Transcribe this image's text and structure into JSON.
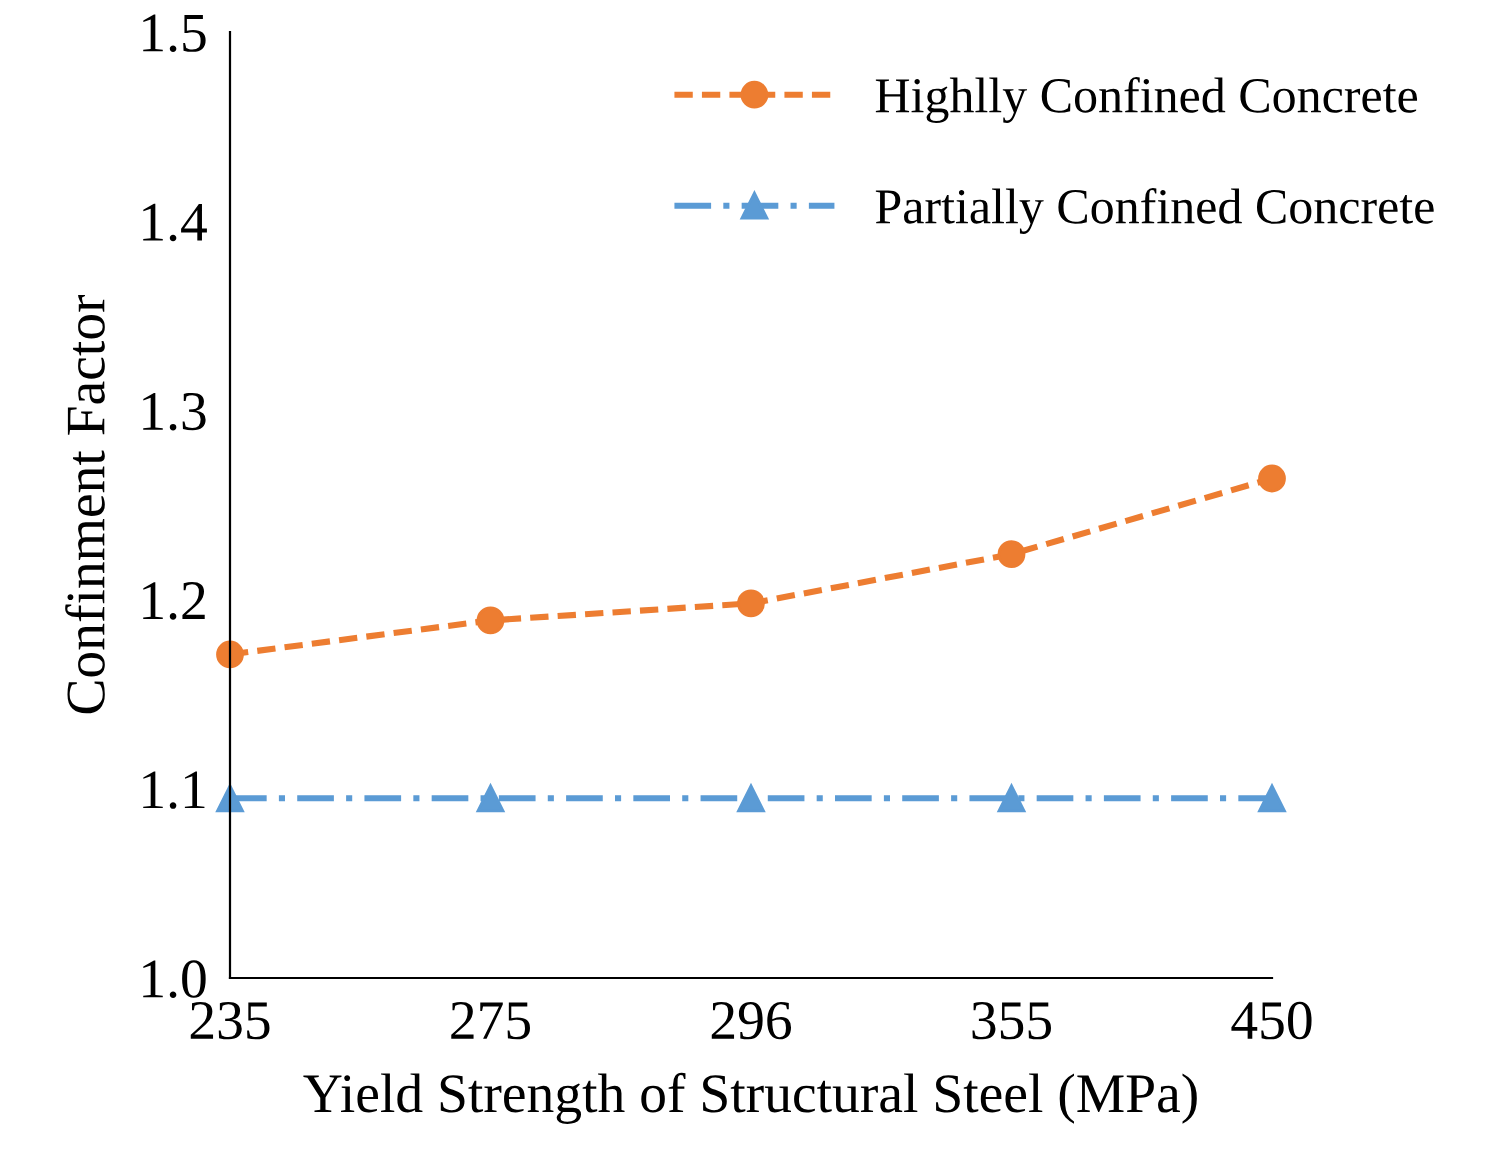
{
  "chart_data": {
    "type": "line",
    "xlabel": "Yield Strength of Structural Steel (MPa)",
    "ylabel": "Confinment Factor",
    "categories": [
      "235",
      "275",
      "296",
      "355",
      "450"
    ],
    "series": [
      {
        "name": "Highlly Confined Concrete",
        "color": "#ed7d31",
        "values": [
          1.171,
          1.189,
          1.198,
          1.224,
          1.264
        ],
        "marker": "circle",
        "line_style": "dashed"
      },
      {
        "name": "Partially Confined Concrete",
        "color": "#5b9bd5",
        "values": [
          1.095,
          1.095,
          1.095,
          1.095,
          1.095
        ],
        "marker": "triangle",
        "line_style": "dashdot"
      }
    ],
    "ylim": [
      1.0,
      1.5
    ],
    "yticks": [
      {
        "value": 1.0,
        "label": "1.0"
      },
      1.1,
      1.2,
      1.3,
      1.4,
      1.5
    ],
    "grid": false,
    "legend": "top right"
  }
}
